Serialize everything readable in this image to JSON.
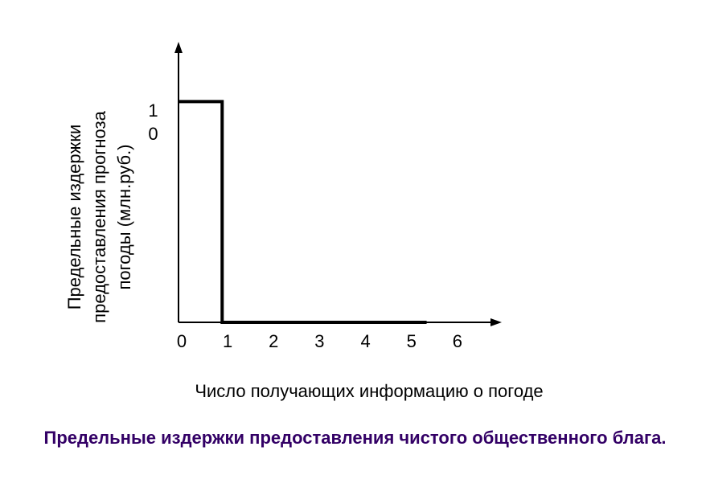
{
  "chart_data": {
    "type": "line",
    "title": "Предельные издержки предоставления чистого общественного блага.",
    "x_label": "Число получающих информацию о погоде",
    "y_label": [
      "Предельные издержки",
      "предоставления прогноза",
      "погоды (млн.руб.)"
    ],
    "x": [
      0,
      0.95,
      0.95,
      5.4
    ],
    "values": [
      10,
      10,
      0,
      0
    ],
    "color": "#000000",
    "xlim": [
      0,
      7
    ],
    "xticks": [
      0,
      1,
      2,
      3,
      4,
      5,
      6
    ],
    "ylim": [
      0,
      12.6
    ],
    "yticks": [
      10
    ],
    "grid": false
  }
}
